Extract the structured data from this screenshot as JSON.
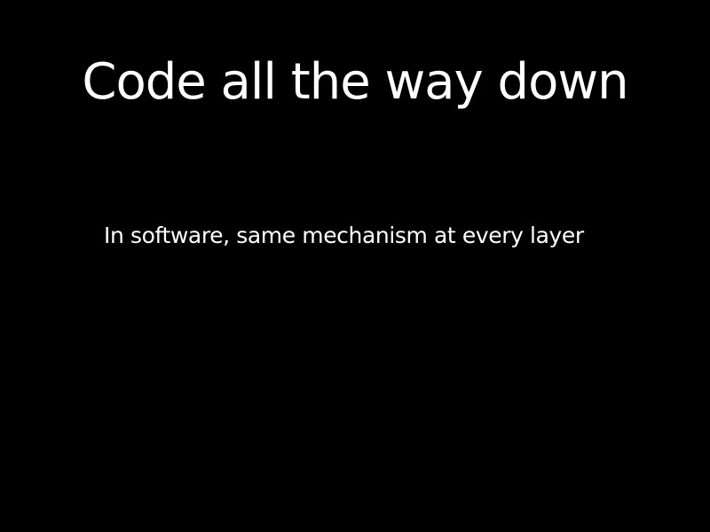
{
  "slide": {
    "title": "Code all the way down",
    "body": "In software, same mechanism at every layer",
    "background_color": "#000000",
    "text_color": "#ffffff"
  }
}
